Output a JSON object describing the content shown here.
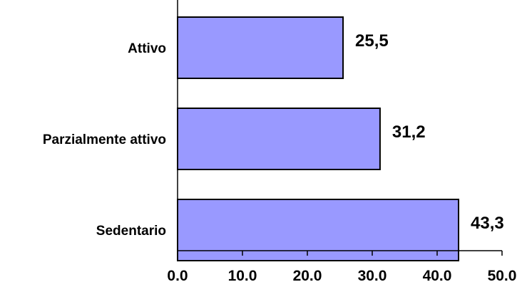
{
  "chart_data": {
    "type": "bar",
    "orientation": "horizontal",
    "categories": [
      "Attivo",
      "Parzialmente attivo",
      "Sedentario"
    ],
    "values": [
      25.5,
      31.2,
      43.3
    ],
    "value_labels": [
      "25,5",
      "31,2",
      "43,3"
    ],
    "x_ticks": [
      "0.0",
      "10.0",
      "20.0",
      "30.0",
      "40.0",
      "50.0"
    ],
    "xlim": [
      0,
      50
    ],
    "bar_color": "#9999ff",
    "bar_edge_color": "#000000",
    "grid": false,
    "legend": "none"
  }
}
